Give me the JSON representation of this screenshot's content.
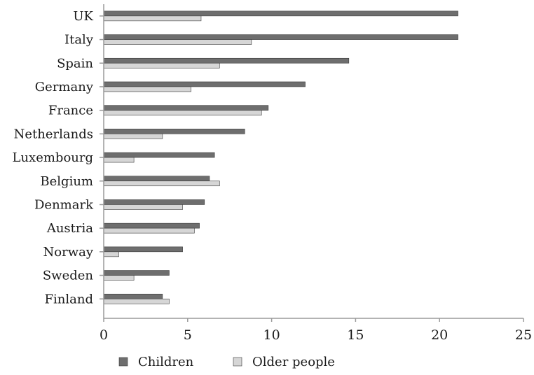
{
  "chart_data": {
    "type": "bar",
    "orientation": "horizontal",
    "title": "",
    "xlabel": "",
    "ylabel": "",
    "xlim": [
      0,
      25
    ],
    "x_ticks": [
      0,
      5,
      10,
      15,
      20,
      25
    ],
    "grid": false,
    "legend_position": "bottom",
    "categories": [
      "UK",
      "Italy",
      "Spain",
      "Germany",
      "France",
      "Netherlands",
      "Luxembourg",
      "Belgium",
      "Denmark",
      "Austria",
      "Norway",
      "Sweden",
      "Finland"
    ],
    "series": [
      {
        "name": "Children",
        "color": "#6e6e6e",
        "values": [
          21.1,
          21.1,
          14.6,
          12.0,
          9.8,
          8.4,
          6.6,
          6.3,
          6.0,
          5.7,
          4.7,
          3.9,
          3.5
        ]
      },
      {
        "name": "Older people",
        "color": "#d6d6d6",
        "values": [
          5.8,
          8.8,
          6.9,
          5.2,
          9.4,
          3.5,
          1.8,
          6.9,
          4.7,
          5.4,
          0.9,
          1.8,
          3.9
        ]
      }
    ]
  }
}
